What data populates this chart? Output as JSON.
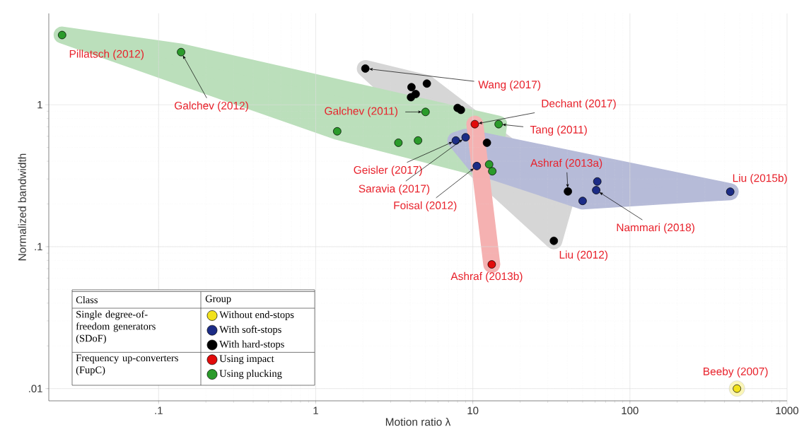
{
  "chart_data": {
    "type": "scatter",
    "xlabel": "Motion ratio λ",
    "ylabel": "Normalized bandwidth",
    "log": "xy",
    "grid": true,
    "marker": "circle",
    "legend": "bottom left",
    "xlim": [
      0.02,
      1000
    ],
    "ylim": [
      0.0082,
      4.4
    ],
    "xticks": [
      {
        "value": 0.1,
        "label": ".1"
      },
      1,
      10,
      100,
      1000
    ],
    "yticks": [
      {
        "value": 0.01,
        "label": ".01"
      },
      {
        "value": 0.1,
        "label": ".1"
      },
      1
    ],
    "series": [
      {
        "name": "Without end-stops",
        "color": "#f2e21c",
        "x": [
          480
        ],
        "values": [
          0.01
        ]
      },
      {
        "name": "With soft-stops",
        "color": "#1c2c86",
        "x": [
          7.8,
          9.0,
          10.6,
          62,
          61,
          50,
          435
        ],
        "values": [
          0.56,
          0.59,
          0.37,
          0.288,
          0.25,
          0.21,
          0.244
        ]
      },
      {
        "name": "With hard-stops",
        "color": "#000000",
        "x": [
          2.07,
          5.1,
          4.07,
          4.33,
          4.04,
          8.0,
          8.4,
          12.3,
          40.3,
          32.8
        ],
        "values": [
          1.8,
          1.41,
          1.33,
          1.19,
          1.13,
          0.95,
          0.92,
          0.54,
          0.245,
          0.11
        ]
      },
      {
        "name": "Using impact",
        "color": "#e10b0b",
        "x": [
          10.3,
          13.2
        ],
        "values": [
          0.73,
          0.075
        ]
      },
      {
        "name": "Using plucking",
        "color": "#2b9b2b",
        "x": [
          0.0243,
          0.139,
          1.37,
          5.0,
          3.36,
          4.48,
          14.6,
          12.7,
          13.3
        ],
        "values": [
          3.1,
          2.35,
          0.65,
          0.89,
          0.54,
          0.56,
          0.73,
          0.38,
          0.34
        ]
      }
    ],
    "annotations": [
      {
        "text": "Pillatsch (2012)",
        "x": 0.0243,
        "y": 3.1
      },
      {
        "text": "Galchev (2012)",
        "x": 0.139,
        "y": 2.35
      },
      {
        "text": "Galchev (2011)",
        "x": 5.0,
        "y": 0.89
      },
      {
        "text": "Wang (2017)",
        "x": 2.07,
        "y": 1.8
      },
      {
        "text": "Dechant (2017)",
        "x": 10.3,
        "y": 0.73
      },
      {
        "text": "Tang (2011)",
        "x": 14.6,
        "y": 0.73
      },
      {
        "text": "Geisler (2017)",
        "x": 7.8,
        "y": 0.56
      },
      {
        "text": "Saravia (2017)",
        "x": 9.0,
        "y": 0.59
      },
      {
        "text": "Foisal (2012)",
        "x": 10.6,
        "y": 0.37
      },
      {
        "text": "Ashraf (2013a)",
        "x": 40.3,
        "y": 0.245
      },
      {
        "text": "Liu (2015b)",
        "x": 435,
        "y": 0.244
      },
      {
        "text": "Nammari (2018)",
        "x": 61,
        "y": 0.25
      },
      {
        "text": "Liu (2012)",
        "x": 32.8,
        "y": 0.11
      },
      {
        "text": "Ashraf (2013b)",
        "x": 13.2,
        "y": 0.075
      },
      {
        "text": "Beeby (2007)",
        "x": 480,
        "y": 0.01
      },
      "Class",
      "Group",
      "Single degree-of-freedom generators (SDoF)",
      "Frequency up-converters (FupC)"
    ]
  }
}
